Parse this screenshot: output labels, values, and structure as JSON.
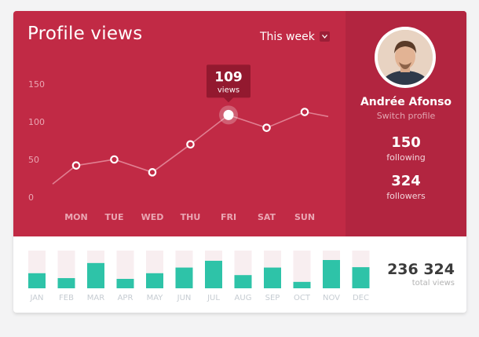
{
  "header": {
    "title": "Profile views",
    "period": "This week"
  },
  "tooltip": {
    "value": "109",
    "unit": "views"
  },
  "profile": {
    "name": "Andrée Afonso",
    "switch_label": "Switch profile",
    "following_count": "150",
    "following_label": "following",
    "followers_count": "324",
    "followers_label": "followers"
  },
  "totals": {
    "value": "236 324",
    "label": "total views"
  },
  "colors": {
    "accent": "#c12a45",
    "profile_panel": "#b22540",
    "bar": "#2ec3a8",
    "bar_track": "#f8eef0"
  },
  "chart_data": [
    {
      "type": "line",
      "categories": [
        "MON",
        "TUE",
        "WED",
        "THU",
        "FRI",
        "SAT",
        "SUN"
      ],
      "values": [
        42,
        50,
        33,
        70,
        109,
        92,
        113
      ],
      "highlight_index": 4,
      "ylim": [
        0,
        160
      ],
      "yticks": [
        0,
        50,
        100,
        150
      ],
      "grid": false
    },
    {
      "type": "bar",
      "categories": [
        "JAN",
        "FEB",
        "MAR",
        "APR",
        "MAY",
        "JUN",
        "JUL",
        "AUG",
        "SEP",
        "OCT",
        "NOV",
        "DEC"
      ],
      "values": [
        0.4,
        0.27,
        0.67,
        0.25,
        0.4,
        0.55,
        0.73,
        0.35,
        0.55,
        0.17,
        0.75,
        0.56
      ]
    }
  ]
}
